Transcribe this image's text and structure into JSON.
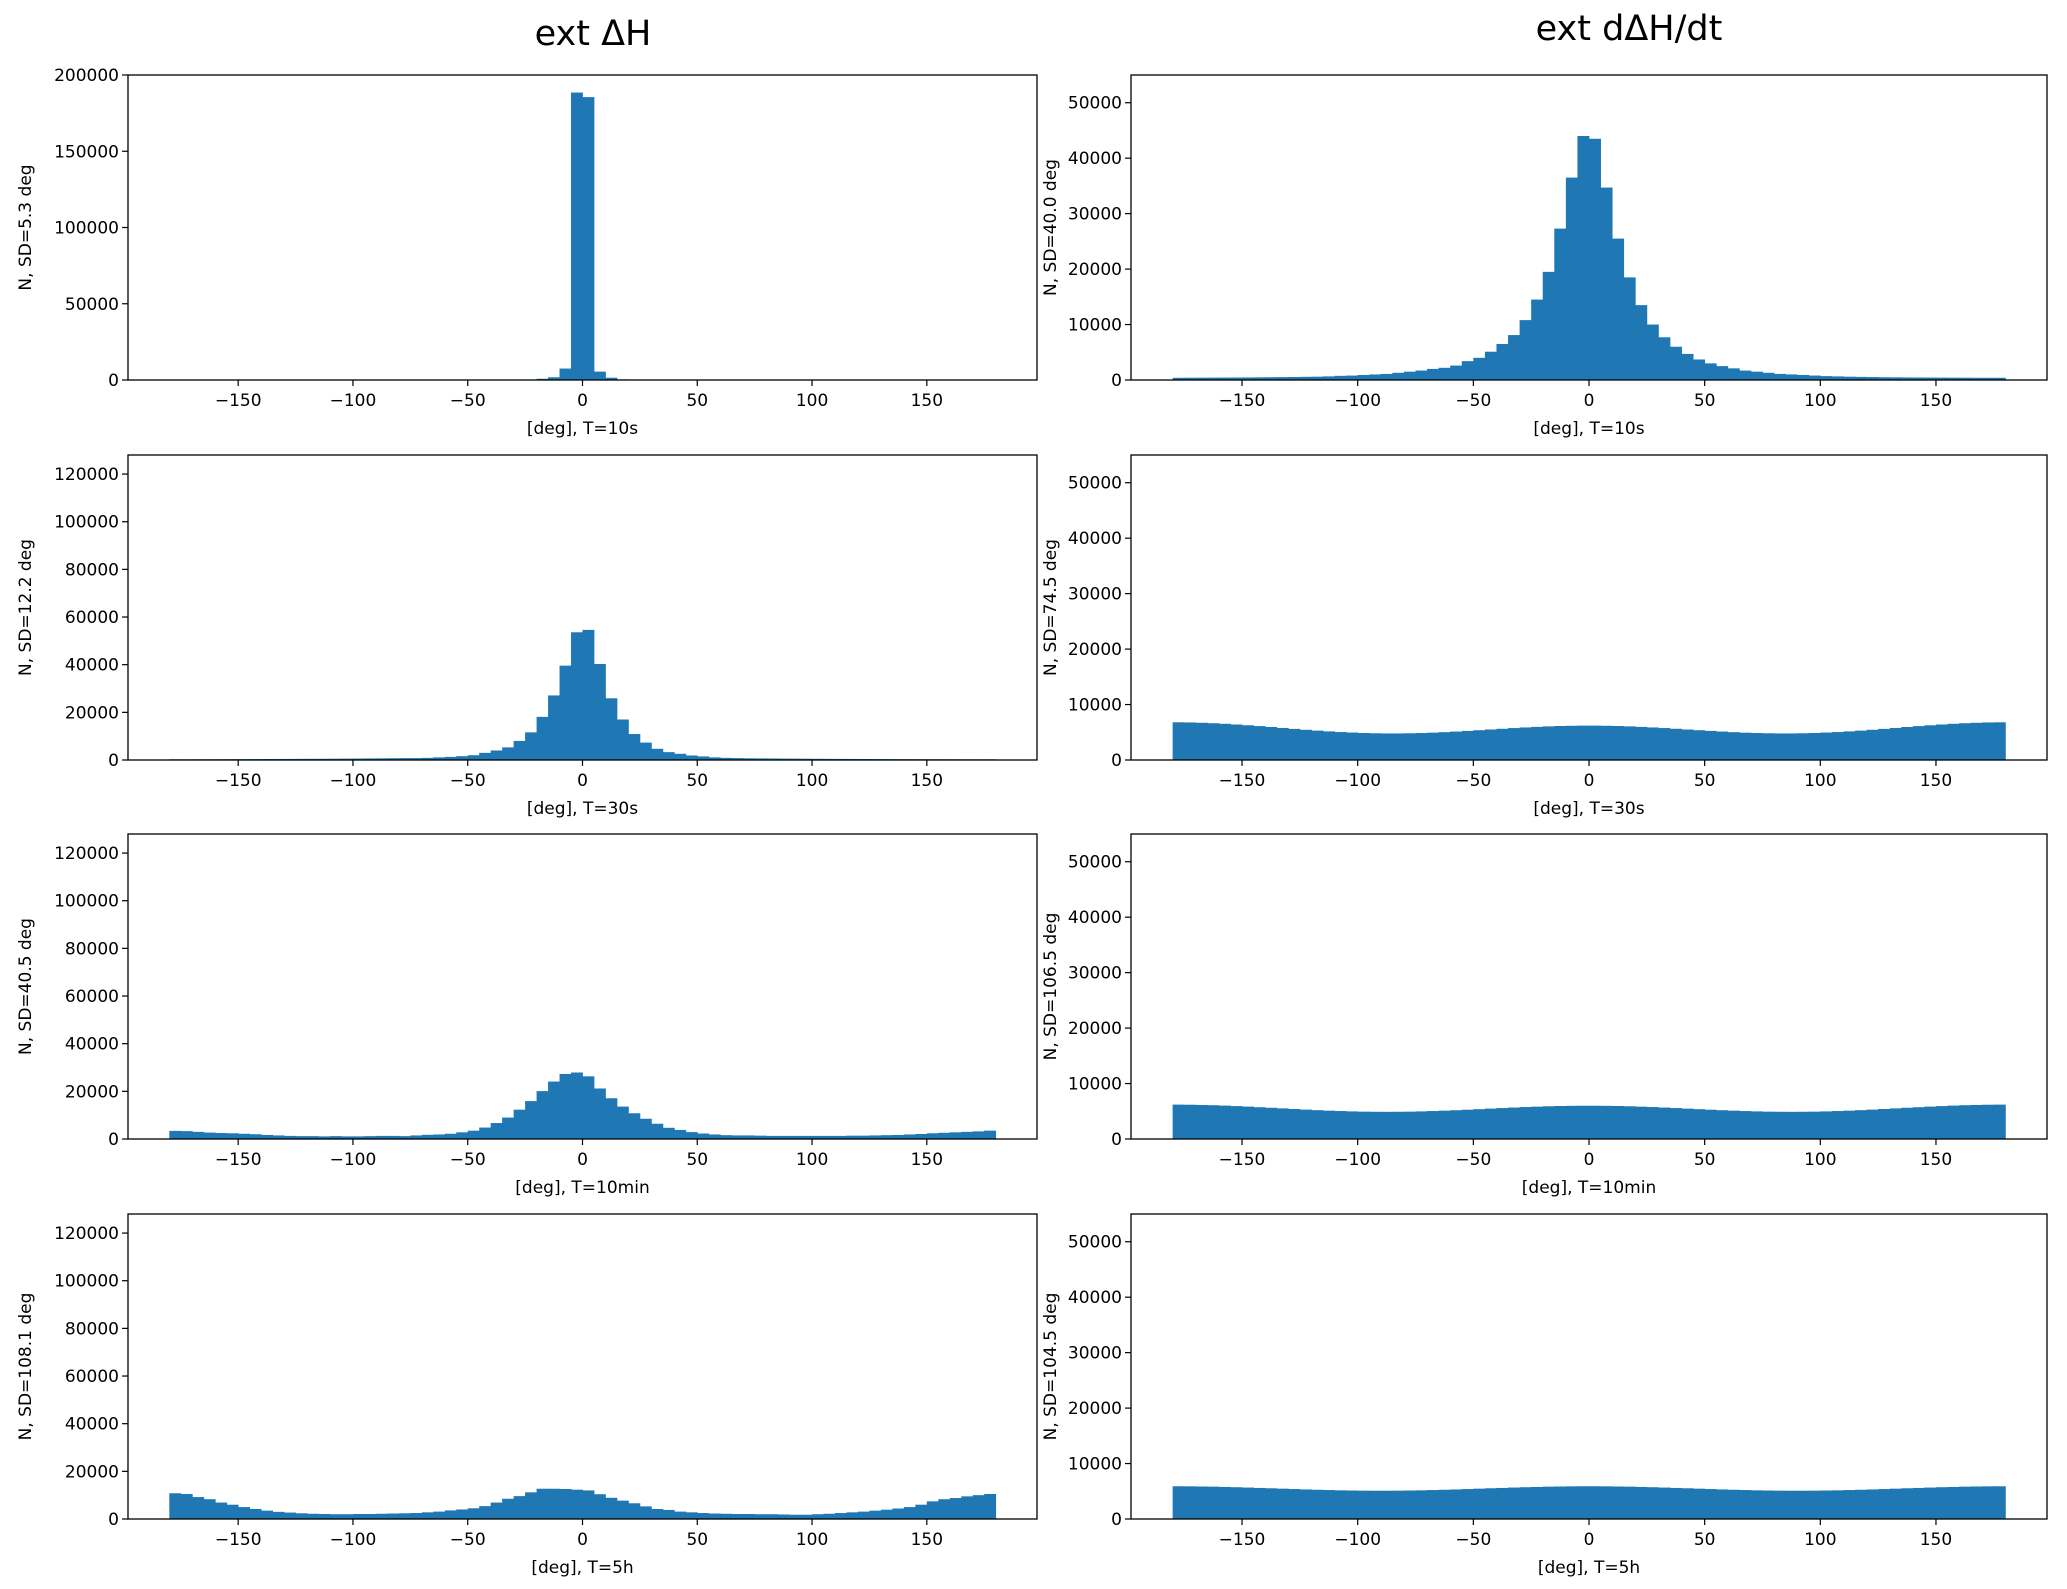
{
  "figure": {
    "column_titles": [
      "ext ΔH",
      "ext dΔH/dt"
    ],
    "bar_color": "#1f77b4"
  },
  "chart_data": [
    {
      "type": "bar",
      "column": 0,
      "row": 0,
      "ylabel": "N, SD=5.3 deg",
      "xlabel": "[deg], T=10s",
      "xlim": [
        -198,
        198
      ],
      "ylim": [
        0,
        200000
      ],
      "xticks": [
        -150,
        -100,
        -50,
        0,
        50,
        100,
        150
      ],
      "xtick_labels": [
        "−150",
        "−100",
        "−50",
        "0",
        "50",
        "100",
        "150"
      ],
      "yticks": [
        0,
        50000,
        100000,
        150000,
        200000
      ],
      "ytick_labels": [
        "0",
        "50000",
        "100000",
        "150000",
        "200000"
      ],
      "bin_start": -180,
      "bin_width": 5,
      "values": [
        20,
        20,
        20,
        20,
        20,
        20,
        20,
        20,
        20,
        20,
        20,
        20,
        20,
        20,
        20,
        20,
        20,
        20,
        20,
        20,
        20,
        20,
        20,
        20,
        20,
        20,
        20,
        20,
        20,
        20,
        100,
        300,
        800,
        1800,
        7500,
        188500,
        185500,
        5500,
        1500,
        400,
        100,
        20,
        20,
        20,
        20,
        20,
        20,
        20,
        20,
        20,
        20,
        20,
        20,
        20,
        20,
        20,
        20,
        20,
        20,
        20,
        20,
        20,
        20,
        20,
        20,
        20,
        20,
        20,
        20,
        20,
        20,
        20
      ]
    },
    {
      "type": "bar",
      "column": 0,
      "row": 1,
      "ylabel": "N, SD=12.2 deg",
      "xlabel": "[deg], T=30s",
      "xlim": [
        -198,
        198
      ],
      "ylim": [
        0,
        128000
      ],
      "xticks": [
        -150,
        -100,
        -50,
        0,
        50,
        100,
        150
      ],
      "xtick_labels": [
        "−150",
        "−100",
        "−50",
        "0",
        "50",
        "100",
        "150"
      ],
      "yticks": [
        0,
        20000,
        40000,
        60000,
        80000,
        100000,
        120000
      ],
      "ytick_labels": [
        "0",
        "20000",
        "40000",
        "60000",
        "80000",
        "100000",
        "120000"
      ],
      "bin_start": -180,
      "bin_width": 5,
      "values": [
        300,
        300,
        310,
        320,
        340,
        360,
        380,
        400,
        420,
        440,
        460,
        480,
        500,
        520,
        550,
        580,
        620,
        660,
        700,
        740,
        780,
        800,
        900,
        1100,
        1300,
        1600,
        2000,
        3000,
        4000,
        5300,
        8000,
        11600,
        18100,
        27100,
        39600,
        53600,
        54600,
        40300,
        25900,
        17000,
        10900,
        7300,
        4700,
        3300,
        2600,
        1900,
        1500,
        1100,
        900,
        800,
        720,
        680,
        640,
        600,
        570,
        540,
        510,
        480,
        460,
        440,
        420,
        400,
        380,
        360,
        350,
        340,
        330,
        320,
        310,
        300,
        300,
        300
      ]
    },
    {
      "type": "bar",
      "column": 0,
      "row": 2,
      "ylabel": "N, SD=40.5 deg",
      "xlabel": "[deg], T=10min",
      "xlim": [
        -198,
        198
      ],
      "ylim": [
        0,
        128000
      ],
      "xticks": [
        -150,
        -100,
        -50,
        0,
        50,
        100,
        150
      ],
      "xtick_labels": [
        "−150",
        "−100",
        "−50",
        "0",
        "50",
        "100",
        "150"
      ],
      "yticks": [
        0,
        20000,
        40000,
        60000,
        80000,
        100000,
        120000
      ],
      "ytick_labels": [
        "0",
        "20000",
        "40000",
        "60000",
        "80000",
        "100000",
        "120000"
      ],
      "bin_start": -180,
      "bin_width": 5,
      "values": [
        3400,
        3300,
        3000,
        2700,
        2500,
        2400,
        2200,
        2000,
        1700,
        1500,
        1300,
        1200,
        1200,
        1100,
        1200,
        1100,
        1100,
        1200,
        1300,
        1300,
        1200,
        1500,
        1750,
        1900,
        2200,
        2800,
        3500,
        4800,
        6700,
        9000,
        12300,
        15900,
        20100,
        24100,
        27300,
        27900,
        26300,
        21200,
        17100,
        13600,
        10800,
        8500,
        6400,
        4700,
        3800,
        2900,
        2300,
        1900,
        1600,
        1500,
        1500,
        1400,
        1300,
        1300,
        1300,
        1300,
        1300,
        1300,
        1300,
        1400,
        1400,
        1500,
        1600,
        1700,
        1900,
        2100,
        2400,
        2600,
        2800,
        3000,
        3200,
        3500
      ]
    },
    {
      "type": "bar",
      "column": 0,
      "row": 3,
      "ylabel": "N, SD=108.1 deg",
      "xlabel": "[deg], T=5h",
      "xlim": [
        -198,
        198
      ],
      "ylim": [
        0,
        128000
      ],
      "xticks": [
        -150,
        -100,
        -50,
        0,
        50,
        100,
        150
      ],
      "xtick_labels": [
        "−150",
        "−100",
        "−50",
        "0",
        "50",
        "100",
        "150"
      ],
      "yticks": [
        0,
        20000,
        40000,
        60000,
        80000,
        100000,
        120000
      ],
      "ytick_labels": [
        "0",
        "20000",
        "40000",
        "60000",
        "80000",
        "100000",
        "120000"
      ],
      "bin_start": -180,
      "bin_width": 5,
      "values": [
        10800,
        10500,
        9200,
        8300,
        6900,
        6000,
        5000,
        4200,
        3500,
        3000,
        2700,
        2400,
        2200,
        2100,
        2000,
        2000,
        2100,
        2100,
        2200,
        2300,
        2400,
        2500,
        2800,
        3100,
        3600,
        4000,
        4500,
        5400,
        6900,
        8500,
        9600,
        11200,
        12700,
        12700,
        12600,
        12300,
        12000,
        10400,
        8900,
        7700,
        6600,
        5300,
        4200,
        3800,
        3100,
        2800,
        2500,
        2300,
        2200,
        2100,
        2100,
        2000,
        2000,
        1900,
        1800,
        1800,
        2000,
        2200,
        2500,
        2800,
        3100,
        3500,
        3900,
        4400,
        5000,
        6000,
        7400,
        8300,
        8800,
        9500,
        10000,
        10500
      ]
    },
    {
      "type": "bar",
      "column": 1,
      "row": 0,
      "ylabel": "N, SD=40.0 deg",
      "xlabel": "[deg], T=10s",
      "xlim": [
        -198,
        198
      ],
      "ylim": [
        0,
        55000
      ],
      "xticks": [
        -150,
        -100,
        -50,
        0,
        50,
        100,
        150
      ],
      "xtick_labels": [
        "−150",
        "−100",
        "−50",
        "0",
        "50",
        "100",
        "150"
      ],
      "yticks": [
        0,
        10000,
        20000,
        30000,
        40000,
        50000
      ],
      "ytick_labels": [
        "0",
        "10000",
        "20000",
        "30000",
        "40000",
        "50000"
      ],
      "bin_start": -180,
      "bin_width": 5,
      "values": [
        400,
        410,
        420,
        430,
        440,
        450,
        460,
        480,
        500,
        520,
        540,
        570,
        600,
        650,
        750,
        800,
        900,
        1000,
        1100,
        1300,
        1500,
        1700,
        2000,
        2200,
        2600,
        3400,
        4000,
        5100,
        6500,
        8100,
        10800,
        14500,
        19500,
        27300,
        36500,
        44000,
        43500,
        34700,
        25500,
        18500,
        13500,
        10000,
        7700,
        6000,
        4700,
        3700,
        3000,
        2500,
        2100,
        1700,
        1500,
        1300,
        1100,
        1000,
        900,
        800,
        700,
        650,
        600,
        560,
        530,
        500,
        480,
        460,
        450,
        440,
        430,
        420,
        410,
        400,
        400,
        400
      ]
    },
    {
      "type": "bar",
      "column": 1,
      "row": 1,
      "ylabel": "N, SD=74.5 deg",
      "xlabel": "[deg], T=30s",
      "xlim": [
        -198,
        198
      ],
      "ylim": [
        0,
        55000
      ],
      "xticks": [
        -150,
        -100,
        -50,
        0,
        50,
        100,
        150
      ],
      "xtick_labels": [
        "−150",
        "−100",
        "−50",
        "0",
        "50",
        "100",
        "150"
      ],
      "yticks": [
        0,
        10000,
        20000,
        30000,
        40000,
        50000
      ],
      "ytick_labels": [
        "0",
        "10000",
        "20000",
        "30000",
        "40000",
        "50000"
      ],
      "bin_start": -180,
      "bin_width": 5,
      "values": [
        6800,
        6770,
        6710,
        6630,
        6530,
        6400,
        6260,
        6110,
        5950,
        5780,
        5610,
        5450,
        5300,
        5160,
        5040,
        4950,
        4870,
        4820,
        4790,
        4790,
        4820,
        4860,
        4930,
        5020,
        5130,
        5250,
        5370,
        5500,
        5630,
        5760,
        5870,
        5970,
        6060,
        6130,
        6170,
        6200,
        6200,
        6170,
        6130,
        6060,
        5970,
        5870,
        5760,
        5630,
        5500,
        5370,
        5250,
        5130,
        5020,
        4930,
        4860,
        4820,
        4790,
        4790,
        4820,
        4870,
        4950,
        5040,
        5160,
        5300,
        5450,
        5610,
        5780,
        5950,
        6110,
        6260,
        6400,
        6530,
        6630,
        6710,
        6770,
        6800
      ]
    },
    {
      "type": "bar",
      "column": 1,
      "row": 2,
      "ylabel": "N, SD=106.5 deg",
      "xlabel": "[deg], T=10min",
      "xlim": [
        -198,
        198
      ],
      "ylim": [
        0,
        55000
      ],
      "xticks": [
        -150,
        -100,
        -50,
        0,
        50,
        100,
        150
      ],
      "xtick_labels": [
        "−150",
        "−100",
        "−50",
        "0",
        "50",
        "100",
        "150"
      ],
      "yticks": [
        0,
        10000,
        20000,
        30000,
        40000,
        50000
      ],
      "ytick_labels": [
        "0",
        "10000",
        "20000",
        "30000",
        "40000",
        "50000"
      ],
      "bin_start": -180,
      "bin_width": 5,
      "values": [
        6200,
        6180,
        6140,
        6090,
        6020,
        5930,
        5840,
        5730,
        5630,
        5520,
        5410,
        5300,
        5200,
        5110,
        5040,
        4980,
        4930,
        4910,
        4900,
        4910,
        4930,
        4980,
        5040,
        5110,
        5190,
        5280,
        5380,
        5480,
        5580,
        5670,
        5760,
        5830,
        5900,
        5950,
        5980,
        6000,
        6000,
        5980,
        5950,
        5900,
        5830,
        5760,
        5670,
        5580,
        5480,
        5380,
        5280,
        5190,
        5110,
        5040,
        4980,
        4930,
        4910,
        4900,
        4910,
        4930,
        4980,
        5040,
        5110,
        5200,
        5300,
        5410,
        5520,
        5630,
        5730,
        5840,
        5930,
        6020,
        6090,
        6140,
        6180,
        6200
      ]
    },
    {
      "type": "bar",
      "column": 1,
      "row": 3,
      "ylabel": "N, SD=104.5 deg",
      "xlabel": "[deg], T=5h",
      "xlim": [
        -198,
        198
      ],
      "ylim": [
        0,
        55000
      ],
      "xticks": [
        -150,
        -100,
        -50,
        0,
        50,
        100,
        150
      ],
      "xtick_labels": [
        "−150",
        "−100",
        "−50",
        "0",
        "50",
        "100",
        "150"
      ],
      "yticks": [
        0,
        10000,
        20000,
        30000,
        40000,
        50000
      ],
      "ytick_labels": [
        "0",
        "10000",
        "20000",
        "30000",
        "40000",
        "50000"
      ],
      "bin_start": -180,
      "bin_width": 5,
      "values": [
        5900,
        5890,
        5860,
        5830,
        5780,
        5730,
        5670,
        5600,
        5540,
        5470,
        5400,
        5330,
        5270,
        5220,
        5170,
        5140,
        5110,
        5100,
        5100,
        5110,
        5140,
        5170,
        5220,
        5270,
        5330,
        5400,
        5470,
        5540,
        5600,
        5670,
        5730,
        5780,
        5830,
        5860,
        5890,
        5900,
        5900,
        5890,
        5860,
        5830,
        5780,
        5730,
        5670,
        5600,
        5540,
        5470,
        5400,
        5330,
        5270,
        5220,
        5170,
        5140,
        5110,
        5100,
        5100,
        5110,
        5140,
        5170,
        5220,
        5270,
        5330,
        5400,
        5470,
        5540,
        5600,
        5670,
        5730,
        5780,
        5830,
        5860,
        5890,
        5900
      ]
    }
  ]
}
